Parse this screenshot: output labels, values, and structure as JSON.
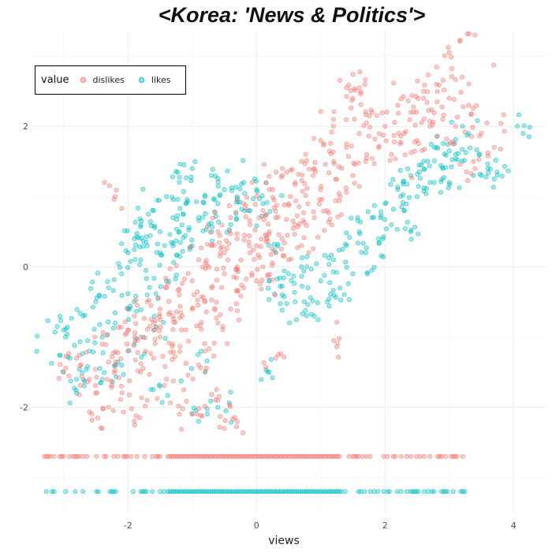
{
  "chart_data": {
    "type": "scatter",
    "title": "<Korea: 'News & Politics'>",
    "xlabel": "views",
    "ylabel": "",
    "xlim": [
      -3.5,
      4.5
    ],
    "ylim": [
      -3.5,
      3.35
    ],
    "xticks": [
      -2,
      0,
      2,
      4
    ],
    "yticks": [
      -2,
      0,
      2
    ],
    "xtick_labels": [
      "-2",
      "0",
      "2",
      "4"
    ],
    "ytick_labels": [
      "-2",
      "0",
      "2"
    ],
    "grid": true,
    "legend": {
      "title": "value",
      "position": "top-left"
    },
    "series": [
      {
        "name": "dislikes",
        "color": "#F8766D",
        "floor_value": -2.7,
        "points": [
          [
            -3.0,
            -1.5
          ],
          [
            -2.8,
            -1.3
          ],
          [
            -2.6,
            -1.6
          ],
          [
            -2.5,
            -1.8
          ],
          [
            -2.4,
            -1.1
          ],
          [
            -2.3,
            -2.0
          ],
          [
            -2.2,
            -1.4
          ],
          [
            -2.1,
            -1.7
          ],
          [
            -2.0,
            -0.9
          ],
          [
            -2.0,
            -1.2
          ],
          [
            -1.9,
            -2.2
          ],
          [
            -1.9,
            -0.7
          ],
          [
            -1.8,
            -1.0
          ],
          [
            -1.8,
            -1.5
          ],
          [
            -1.7,
            -0.5
          ],
          [
            -1.7,
            -1.9
          ],
          [
            -1.6,
            -0.8
          ],
          [
            -1.6,
            -1.3
          ],
          [
            -1.5,
            -0.6
          ],
          [
            -1.5,
            -1.0
          ],
          [
            -1.4,
            -0.3
          ],
          [
            -1.4,
            -1.6
          ],
          [
            -1.3,
            -0.7
          ],
          [
            -1.3,
            -1.1
          ],
          [
            -1.2,
            -0.4
          ],
          [
            -1.2,
            -2.1
          ],
          [
            -1.1,
            -0.9
          ],
          [
            -1.0,
            -0.2
          ],
          [
            -1.0,
            -0.6
          ],
          [
            -0.9,
            -1.4
          ],
          [
            -0.9,
            0.1
          ],
          [
            -0.8,
            -0.5
          ],
          [
            -0.8,
            -1.2
          ],
          [
            -0.7,
            0.3
          ],
          [
            -0.7,
            -0.3
          ],
          [
            -0.6,
            -0.8
          ],
          [
            -0.6,
            0.5
          ],
          [
            -0.5,
            -0.1
          ],
          [
            -0.5,
            0.2
          ],
          [
            -0.4,
            -0.6
          ],
          [
            -0.4,
            0.7
          ],
          [
            -0.3,
            0.0
          ],
          [
            -0.3,
            0.4
          ],
          [
            -0.2,
            -0.3
          ],
          [
            -0.2,
            0.9
          ],
          [
            -0.1,
            0.2
          ],
          [
            -0.1,
            0.6
          ],
          [
            0.0,
            -0.2
          ],
          [
            0.0,
            0.3
          ],
          [
            0.1,
            0.8
          ],
          [
            0.1,
            0.0
          ],
          [
            0.2,
            0.5
          ],
          [
            0.2,
            1.1
          ],
          [
            0.3,
            0.2
          ],
          [
            0.3,
            0.7
          ],
          [
            0.4,
            1.3
          ],
          [
            0.4,
            0.4
          ],
          [
            0.5,
            0.9
          ],
          [
            0.5,
            0.1
          ],
          [
            0.6,
            1.2
          ],
          [
            0.6,
            0.6
          ],
          [
            0.7,
            1.5
          ],
          [
            0.7,
            0.3
          ],
          [
            0.8,
            0.9
          ],
          [
            0.9,
            1.4
          ],
          [
            0.9,
            0.7
          ],
          [
            1.0,
            1.1
          ],
          [
            1.0,
            1.8
          ],
          [
            1.1,
            0.8
          ],
          [
            1.2,
            1.5
          ],
          [
            1.2,
            2.1
          ],
          [
            1.3,
            1.0
          ],
          [
            1.4,
            1.7
          ],
          [
            1.5,
            1.3
          ],
          [
            1.5,
            2.4
          ],
          [
            1.6,
            1.9
          ],
          [
            1.7,
            1.5
          ],
          [
            1.8,
            2.2
          ],
          [
            1.9,
            1.7
          ],
          [
            2.0,
            2.0
          ],
          [
            2.1,
            1.6
          ],
          [
            2.2,
            2.3
          ],
          [
            2.3,
            1.9
          ],
          [
            2.4,
            2.2
          ],
          [
            2.5,
            1.8
          ],
          [
            2.6,
            2.4
          ],
          [
            2.7,
            2.0
          ],
          [
            2.8,
            2.6
          ],
          [
            2.9,
            2.1
          ],
          [
            3.0,
            2.4
          ],
          [
            3.1,
            2.0
          ],
          [
            3.2,
            2.7
          ],
          [
            3.3,
            2.3
          ],
          [
            3.4,
            3.3
          ],
          [
            3.0,
            3.05
          ],
          [
            2.6,
            2.5
          ],
          [
            1.4,
            2.55
          ],
          [
            1.6,
            2.55
          ],
          [
            -2.2,
            1.0
          ],
          [
            3.5,
            1.9
          ],
          [
            3.7,
            1.7
          ],
          [
            3.4,
            1.4
          ],
          [
            -0.5,
            -2.3
          ],
          [
            -0.3,
            -2.2
          ],
          [
            -1.0,
            -2.1
          ],
          [
            -0.6,
            -1.9
          ],
          [
            0.3,
            -1.3
          ],
          [
            1.2,
            -1.05
          ],
          [
            -2.4,
            -2.3
          ]
        ]
      },
      {
        "name": "likes",
        "color": "#00BFC4",
        "floor_value": -3.2,
        "points": [
          [
            -3.0,
            -0.9
          ],
          [
            -2.9,
            -1.3
          ],
          [
            -2.8,
            -1.6
          ],
          [
            -2.7,
            -0.7
          ],
          [
            -2.6,
            -1.2
          ],
          [
            -2.5,
            -0.5
          ],
          [
            -2.4,
            -1.0
          ],
          [
            -2.3,
            -0.3
          ],
          [
            -2.2,
            -0.8
          ],
          [
            -2.1,
            -0.1
          ],
          [
            -2.1,
            -1.4
          ],
          [
            -2.0,
            0.2
          ],
          [
            -2.0,
            -0.6
          ],
          [
            -1.9,
            0.4
          ],
          [
            -1.9,
            -1.1
          ],
          [
            -1.8,
            0.1
          ],
          [
            -1.8,
            0.6
          ],
          [
            -1.7,
            -0.4
          ],
          [
            -1.7,
            0.3
          ],
          [
            -1.6,
            0.8
          ],
          [
            -1.6,
            -0.9
          ],
          [
            -1.5,
            0.5
          ],
          [
            -1.5,
            0.2
          ],
          [
            -1.4,
            1.0
          ],
          [
            -1.4,
            -0.2
          ],
          [
            -1.3,
            0.7
          ],
          [
            -1.3,
            0.3
          ],
          [
            -1.2,
            1.2
          ],
          [
            -1.2,
            0.5
          ],
          [
            -1.1,
            0.9
          ],
          [
            -1.0,
            0.3
          ],
          [
            -1.0,
            1.4
          ],
          [
            -0.9,
            0.7
          ],
          [
            -0.8,
            1.0
          ],
          [
            -0.7,
            0.5
          ],
          [
            -0.7,
            1.3
          ],
          [
            -0.6,
            0.9
          ],
          [
            -0.5,
            1.1
          ],
          [
            -0.4,
            0.6
          ],
          [
            -0.3,
            1.0
          ],
          [
            -0.2,
            1.2
          ],
          [
            -0.1,
            0.8
          ],
          [
            0.0,
            1.1
          ],
          [
            0.1,
            0.9
          ],
          [
            0.2,
            -0.2
          ],
          [
            0.3,
            0.2
          ],
          [
            0.4,
            -0.4
          ],
          [
            0.5,
            -0.1
          ],
          [
            0.6,
            -0.5
          ],
          [
            0.7,
            0.0
          ],
          [
            0.8,
            -0.3
          ],
          [
            0.9,
            -0.7
          ],
          [
            1.0,
            -0.2
          ],
          [
            1.1,
            -0.5
          ],
          [
            1.2,
            0.1
          ],
          [
            1.3,
            -0.3
          ],
          [
            1.4,
            0.3
          ],
          [
            1.5,
            -0.1
          ],
          [
            1.6,
            0.5
          ],
          [
            1.7,
            0.2
          ],
          [
            1.8,
            0.7
          ],
          [
            1.9,
            0.4
          ],
          [
            2.0,
            0.9
          ],
          [
            2.1,
            0.6
          ],
          [
            2.2,
            1.1
          ],
          [
            2.3,
            0.8
          ],
          [
            2.4,
            1.3
          ],
          [
            2.5,
            1.0
          ],
          [
            2.6,
            1.5
          ],
          [
            2.7,
            1.2
          ],
          [
            2.8,
            1.7
          ],
          [
            2.9,
            1.4
          ],
          [
            3.0,
            1.2
          ],
          [
            3.1,
            1.6
          ],
          [
            3.2,
            1.5
          ],
          [
            3.3,
            1.9
          ],
          [
            3.5,
            1.3
          ],
          [
            3.6,
            1.4
          ],
          [
            3.7,
            1.25
          ],
          [
            4.15,
            1.9
          ],
          [
            3.0,
            1.65
          ],
          [
            2.4,
            0.5
          ],
          [
            -0.6,
            -2.0
          ],
          [
            -0.8,
            -1.5
          ],
          [
            -1.5,
            -1.7
          ],
          [
            -2.4,
            -1.6
          ],
          [
            -0.9,
            -2.2
          ],
          [
            -2.8,
            -1.8
          ],
          [
            -3.1,
            -0.85
          ],
          [
            0.2,
            -1.5
          ]
        ]
      }
    ]
  }
}
